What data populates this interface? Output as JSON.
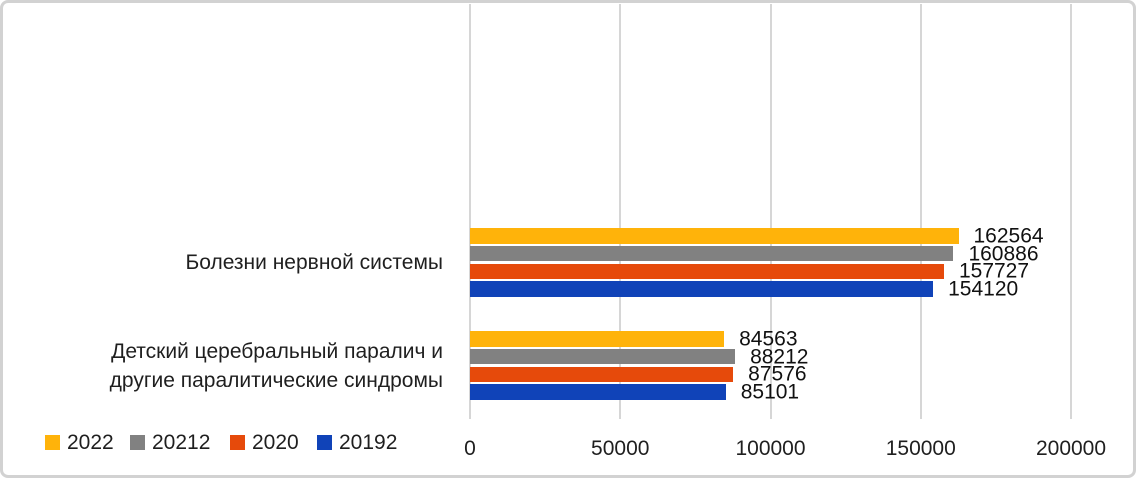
{
  "chart_data": {
    "type": "bar",
    "orientation": "horizontal",
    "title": "",
    "xlabel": "",
    "ylabel": "",
    "categories": [
      "Болезни нервной системы",
      "Детский церебральный паралич и\nдругие паралитические синдромы"
    ],
    "series": [
      {
        "name": "2022",
        "color": "#FFB30A",
        "values": [
          162564,
          84563
        ]
      },
      {
        "name": "20212",
        "color": "#818181",
        "values": [
          160886,
          88212
        ]
      },
      {
        "name": "2020",
        "color": "#E64A0B",
        "values": [
          157727,
          87576
        ]
      },
      {
        "name": "20192",
        "color": "#1043B8",
        "values": [
          154120,
          85101
        ]
      }
    ],
    "data_labels": [
      [
        "162564",
        "160886",
        "157727",
        "154120"
      ],
      [
        "84563",
        "88212",
        "87576",
        "85101"
      ]
    ],
    "x_axis": {
      "min": 0,
      "max": 200000,
      "tick_step": 50000,
      "tick_labels": [
        "0",
        "50000",
        "100000",
        "150000",
        "200000"
      ]
    },
    "grid": "vertical",
    "legend_position": "bottom-left"
  },
  "frame": {
    "background": "#FFFFFF",
    "border_color": "#D2D2D2",
    "gridline_color": "#D6D6D6",
    "text_color": "#1F1F1F"
  }
}
